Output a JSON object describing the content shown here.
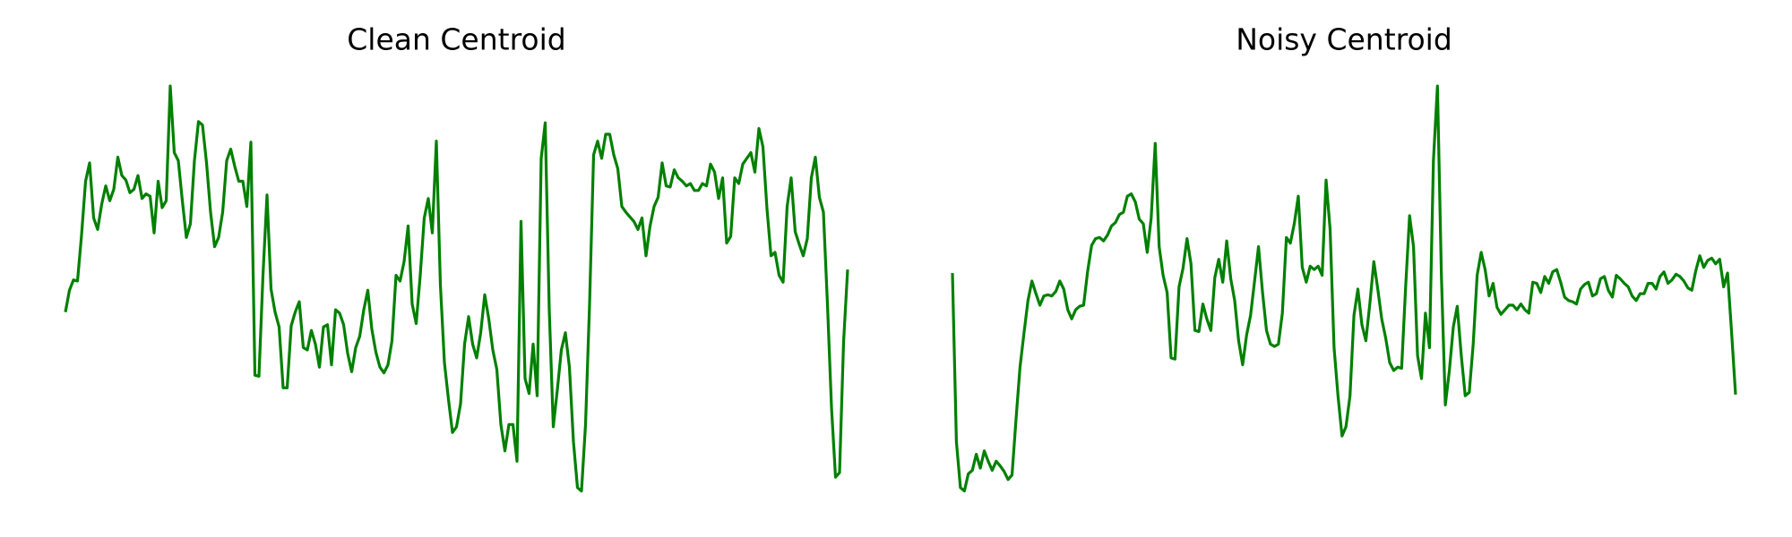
{
  "chart_data": [
    {
      "type": "line",
      "title": "Clean Centroid",
      "color": "#008000",
      "ylim": [
        0,
        440
      ],
      "values": [
        168,
        187,
        196,
        195,
        235,
        282,
        298,
        250,
        240,
        262,
        278,
        265,
        275,
        303,
        287,
        283,
        272,
        275,
        287,
        267,
        271,
        269,
        237,
        282,
        259,
        265,
        365,
        307,
        300,
        265,
        233,
        245,
        300,
        334,
        331,
        298,
        255,
        225,
        233,
        255,
        300,
        310,
        295,
        282,
        282,
        260,
        316,
        113,
        112,
        200,
        270,
        188,
        168,
        155,
        102,
        102,
        156,
        168,
        177,
        137,
        135,
        152,
        140,
        120,
        155,
        157,
        122,
        170,
        167,
        157,
        132,
        116,
        137,
        147,
        170,
        187,
        153,
        133,
        120,
        115,
        122,
        143,
        200,
        195,
        212,
        243,
        175,
        158,
        200,
        250,
        267,
        237,
        317,
        192,
        124,
        92,
        63,
        68,
        88,
        140,
        164,
        140,
        128,
        150,
        183,
        162,
        135,
        118,
        70,
        47,
        70,
        70,
        38,
        247,
        110,
        97,
        140,
        95,
        302,
        333,
        170,
        68,
        100,
        135,
        150,
        120,
        55,
        15,
        12,
        70,
        175,
        305,
        317,
        302,
        323,
        323,
        305,
        293,
        260,
        255,
        251,
        247,
        240,
        250,
        217,
        243,
        260,
        268,
        298,
        278,
        277,
        292,
        285,
        282,
        278,
        280,
        274,
        274,
        280,
        278,
        297,
        290,
        267,
        285,
        228,
        234,
        285,
        280,
        297,
        302,
        307,
        290,
        328,
        312,
        258,
        217,
        220,
        200,
        194,
        260,
        285,
        238,
        227,
        217,
        232,
        285,
        303,
        268,
        255,
        175,
        85,
        24,
        28,
        142,
        205
      ]
    },
    {
      "type": "line",
      "title": "Noisy Centroid",
      "color": "#008000",
      "ylim": [
        0,
        440
      ],
      "values": [
        202,
        55,
        15,
        12,
        27,
        30,
        44,
        32,
        47,
        38,
        30,
        38,
        34,
        29,
        22,
        26,
        75,
        120,
        150,
        178,
        195,
        184,
        174,
        182,
        183,
        182,
        186,
        195,
        188,
        170,
        162,
        170,
        173,
        174,
        203,
        226,
        232,
        233,
        230,
        235,
        243,
        246,
        253,
        255,
        269,
        271,
        264,
        249,
        245,
        220,
        250,
        315,
        225,
        200,
        185,
        128,
        127,
        190,
        206,
        232,
        210,
        152,
        151,
        175,
        162,
        152,
        198,
        214,
        194,
        230,
        197,
        178,
        143,
        122,
        148,
        165,
        195,
        225,
        185,
        152,
        140,
        138,
        140,
        167,
        233,
        228,
        245,
        269,
        207,
        194,
        208,
        205,
        208,
        200,
        283,
        240,
        137,
        95,
        60,
        68,
        95,
        165,
        188,
        157,
        143,
        175,
        212,
        188,
        162,
        145,
        124,
        117,
        120,
        119,
        190,
        252,
        225,
        130,
        110,
        167,
        137,
        300,
        365,
        200,
        87,
        117,
        155,
        173,
        130,
        95,
        98,
        140,
        200,
        220,
        205,
        182,
        193,
        172,
        166,
        170,
        174,
        174,
        170,
        175,
        170,
        167,
        194,
        193,
        185,
        199,
        193,
        203,
        205,
        194,
        181,
        178,
        177,
        175,
        188,
        192,
        194,
        182,
        184,
        197,
        199,
        187,
        181,
        200,
        197,
        193,
        190,
        182,
        178,
        184,
        184,
        193,
        193,
        188,
        199,
        203,
        193,
        196,
        201,
        199,
        195,
        189,
        187,
        204,
        217,
        207,
        213,
        215,
        210,
        214,
        190,
        202,
        150,
        96
      ]
    }
  ]
}
